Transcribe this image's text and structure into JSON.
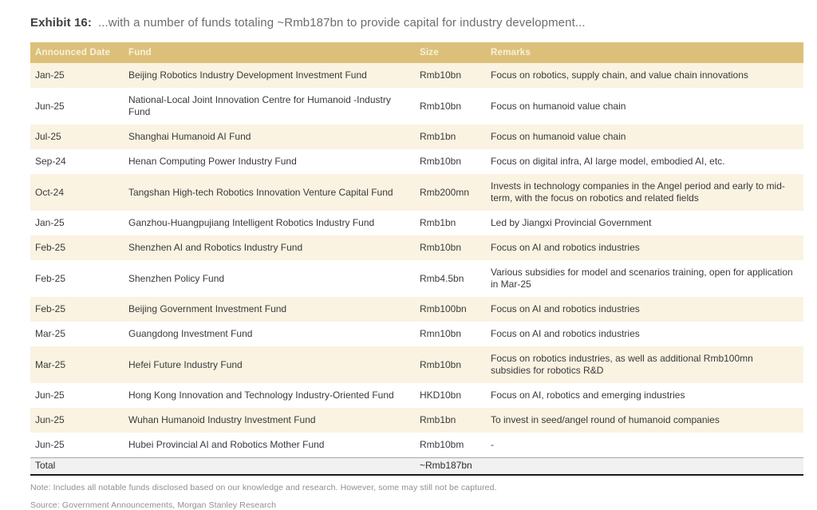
{
  "exhibit": {
    "label": "Exhibit 16:",
    "title": "...with a number of funds totaling ~Rmb187bn to provide capital for industry development..."
  },
  "table": {
    "headers": [
      "Announced Date",
      "Fund",
      "Size",
      "Remarks"
    ],
    "rows": [
      {
        "date": "Jan-25",
        "fund": "Beijing Robotics Industry Development Investment Fund",
        "size": "Rmb10bn",
        "remarks": "Focus on robotics, supply chain, and value chain innovations"
      },
      {
        "date": "Jun-25",
        "fund": "National-Local Joint Innovation Centre for Humanoid -Industry Fund",
        "size": "Rmb10bn",
        "remarks": "Focus on humanoid value chain"
      },
      {
        "date": "Jul-25",
        "fund": "Shanghai Humanoid AI Fund",
        "size": "Rmb1bn",
        "remarks": "Focus on humanoid value chain"
      },
      {
        "date": "Sep-24",
        "fund": "Henan Computing Power Industry Fund",
        "size": "Rmb10bn",
        "remarks": "Focus on digital infra, AI large model, embodied AI, etc."
      },
      {
        "date": "Oct-24",
        "fund": "Tangshan High-tech Robotics Innovation Venture Capital Fund",
        "size": "Rmb200mn",
        "remarks": "Invests in technology companies in the Angel period and early to mid-term, with the focus on robotics and related fields"
      },
      {
        "date": "Jan-25",
        "fund": "Ganzhou-Huangpujiang Intelligent Robotics Industry Fund",
        "size": "Rmb1bn",
        "remarks": "Led by Jiangxi Provincial Government"
      },
      {
        "date": "Feb-25",
        "fund": "Shenzhen AI and Robotics Industry Fund",
        "size": "Rmb10bn",
        "remarks": "Focus on AI and robotics industries"
      },
      {
        "date": "Feb-25",
        "fund": "Shenzhen Policy Fund",
        "size": "Rmb4.5bn",
        "remarks": "Various subsidies for model and scenarios training, open for application in Mar-25"
      },
      {
        "date": "Feb-25",
        "fund": "Beijing Government Investment Fund",
        "size": "Rmb100bn",
        "remarks": "Focus on AI and robotics industries"
      },
      {
        "date": "Mar-25",
        "fund": "Guangdong Investment Fund",
        "size": "Rmn10bn",
        "remarks": "Focus on AI and robotics industries"
      },
      {
        "date": "Mar-25",
        "fund": "Hefei Future Industry Fund",
        "size": "Rmb10bn",
        "remarks": "Focus on robotics industries, as well as additional Rmb100mn subsidies for robotics R&D"
      },
      {
        "date": "Jun-25",
        "fund": "Hong Kong Innovation and Technology Industry-Oriented Fund",
        "size": "HKD10bn",
        "remarks": "Focus on AI, robotics and emerging industries"
      },
      {
        "date": "Jun-25",
        "fund": "Wuhan Humanoid Industry Investment Fund",
        "size": "Rmb1bn",
        "remarks": "To invest in seed/angel round of humanoid companies"
      },
      {
        "date": "Jun-25",
        "fund": "Hubei Provincial AI and Robotics Mother Fund",
        "size": "Rmb10bm",
        "remarks": "-"
      }
    ],
    "total": {
      "label": "Total",
      "size": "~Rmb187bn"
    }
  },
  "footer": {
    "note": "Note: Includes all notable funds disclosed based on our knowledge and research. However, some may still not be captured.",
    "source": "Source: Government Announcements, Morgan Stanley Research"
  },
  "colors": {
    "header_bg": "#dcc07a",
    "header_text": "#f8f1d8",
    "row_alt_bg": "#faf3e2",
    "row_bg": "#ffffff",
    "total_bg": "#f1f1f1",
    "body_text": "#3a3a3a",
    "note_text": "#8f8f8f"
  }
}
